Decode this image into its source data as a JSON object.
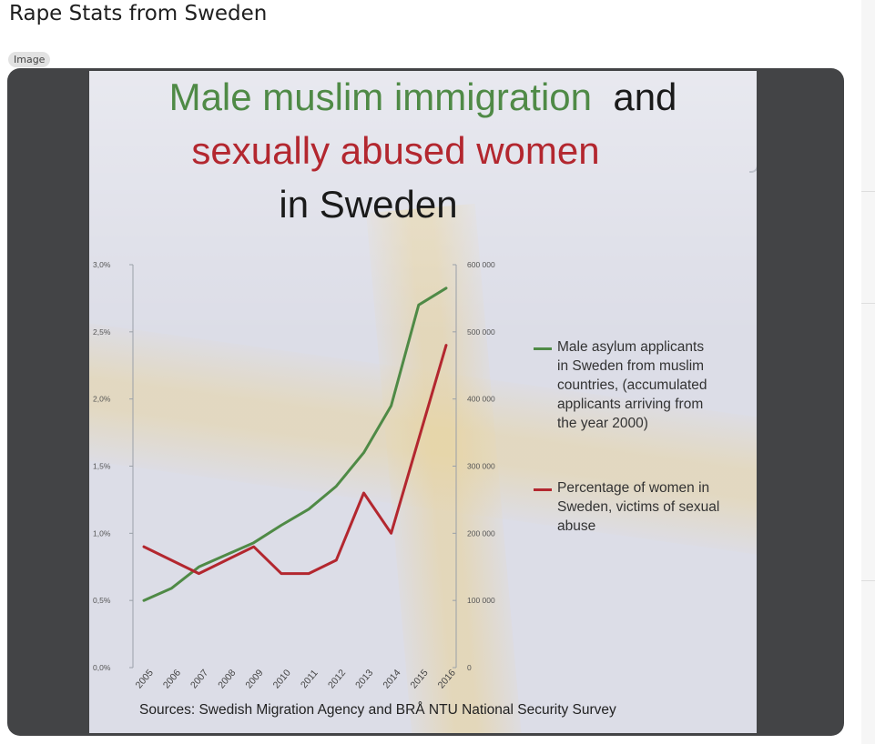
{
  "post": {
    "title": "Rape Stats from Sweden",
    "badge": "Image"
  },
  "colors": {
    "green": "#4f8a46",
    "red": "#b3272f",
    "frame": "#434446"
  },
  "chart_data": {
    "type": "line",
    "title_parts": [
      {
        "text": "Male muslim immigration",
        "color": "#4f8a46"
      },
      {
        "text": "and",
        "color": "#1a1a1a"
      },
      {
        "text": "sexually abused women",
        "color": "#b3272f"
      },
      {
        "text": "in Sweden",
        "color": "#1a1a1a"
      }
    ],
    "x": [
      "2005",
      "2006",
      "2007",
      "2008",
      "2009",
      "2010",
      "2011",
      "2012",
      "2013",
      "2014",
      "2015",
      "2016"
    ],
    "y_left_ticks": [
      "0,0%",
      "0,5%",
      "1,0%",
      "1,5%",
      "2,0%",
      "2,5%",
      "3,0%"
    ],
    "y_left_lim": [
      0,
      3
    ],
    "y_right_ticks": [
      "0",
      "100 000",
      "200 000",
      "300 000",
      "400 000",
      "500 000",
      "600 000"
    ],
    "y_right_lim": [
      0,
      600000
    ],
    "series": [
      {
        "name": "Male asylum applicants in Sweden from muslim countries, (accumulated applicants arriving from the year 2000)",
        "axis": "right",
        "color": "#4f8a46",
        "values": [
          100000,
          118000,
          150000,
          168000,
          186000,
          212000,
          236000,
          270000,
          320000,
          390000,
          540000,
          565000
        ]
      },
      {
        "name": "Percentage of women in Sweden, victims of sexual abuse",
        "axis": "left",
        "color": "#b3272f",
        "values": [
          0.9,
          0.8,
          0.7,
          0.8,
          0.9,
          0.7,
          0.7,
          0.8,
          1.3,
          1.0,
          null,
          2.4
        ]
      }
    ],
    "legend": [
      {
        "label": "Male asylum applicants\nin Sweden from muslim\ncountries, (accumulated\napplicants arriving from\nthe year 2000)",
        "color": "#4f8a46"
      },
      {
        "label": "Percentage of women in\nSweden, victims of sexual\nabuse",
        "color": "#b3272f"
      }
    ],
    "legend_position": "right",
    "sources": "Sources: Swedish Migration Agency and BRÅ NTU National Security Survey"
  }
}
